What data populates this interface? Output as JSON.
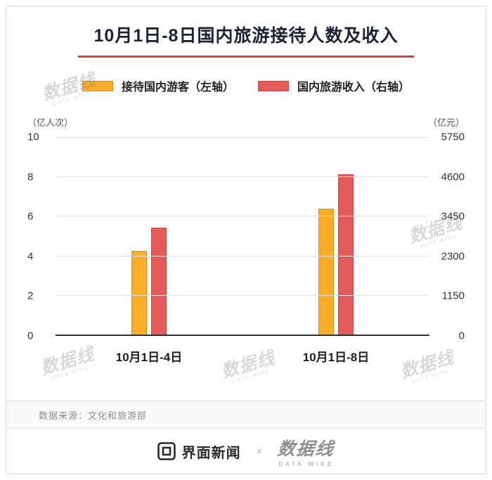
{
  "page": {
    "title": "10月1日-8日国内旅游接待人数及收入",
    "source": "数据来源：文化和旅游部",
    "watermark": {
      "text": "数据线",
      "sub": "DATA WIRE"
    },
    "footer": {
      "jiemian": "界面新闻",
      "separator": "×",
      "datawire": "数据线",
      "datawire_sub": "DATA WIRE"
    }
  },
  "colors": {
    "accent_red": "#D9413E",
    "title_text": "#1A2336",
    "bar_yellow": "#FBAD2A",
    "bar_yellow_border": "#DE8F10",
    "bar_red": "#E65A5A",
    "bar_red_border": "#C64747",
    "axis_line": "#2E2E2E",
    "gridline": "#E3E3E3"
  },
  "chart_data": {
    "type": "bar",
    "title": "10月1日-8日国内旅游接待人数及收入",
    "categories": [
      "10月1日-4日",
      "10月1日-8日"
    ],
    "series": [
      {
        "name": "接待国内游客（左轴）",
        "axis": "left",
        "unit": "亿人次",
        "color": "#FBAD2A",
        "border_color": "#DE8F10",
        "values": [
          4.25,
          6.37
        ]
      },
      {
        "name": "国内旅游收入（右轴）",
        "axis": "right",
        "unit": "亿元",
        "color": "#E65A5A",
        "border_color": "#C64747",
        "values": [
          3120,
          4666
        ]
      }
    ],
    "left_axis": {
      "label": "（亿人次）",
      "max": 10,
      "ticks": [
        10,
        8,
        6,
        4,
        2,
        0
      ]
    },
    "right_axis": {
      "label": "（亿元）",
      "max": 5750,
      "ticks": [
        5750,
        4600,
        3450,
        2300,
        1150,
        0
      ]
    },
    "grid": true,
    "legend_position": "top"
  }
}
